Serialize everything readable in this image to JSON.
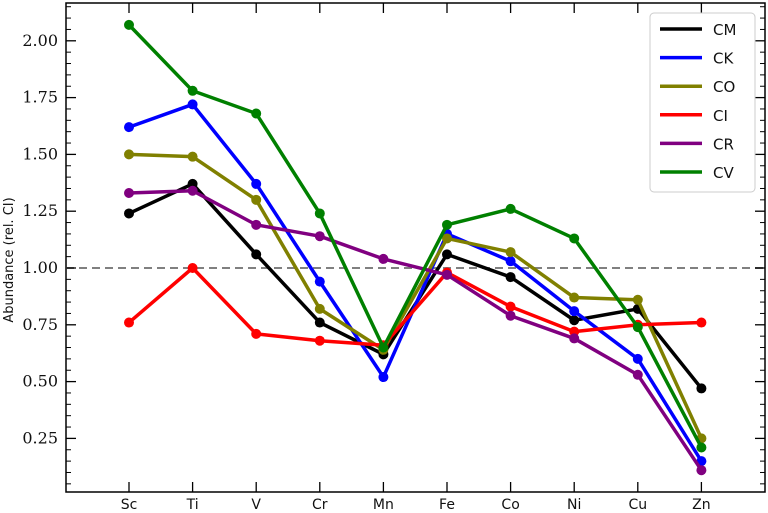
{
  "chart_data": {
    "type": "line",
    "title": "",
    "xlabel": "",
    "ylabel": "Abundance (rel. CI)",
    "categories": [
      "Sc",
      "Ti",
      "V",
      "Cr",
      "Mn",
      "Fe",
      "Co",
      "Ni",
      "Cu",
      "Zn"
    ],
    "yticks": [
      "0.25",
      "0.50",
      "0.75",
      "1.00",
      "1.25",
      "1.50",
      "1.75",
      "2.00"
    ],
    "ylim": [
      0.01,
      2.16
    ],
    "grid": false,
    "reference_line": {
      "y": 1.0,
      "style": "dashed",
      "color": "#808080"
    },
    "legend_position": "upper right",
    "series": [
      {
        "name": "CM",
        "color": "#000000",
        "values": [
          1.24,
          1.37,
          1.06,
          0.76,
          0.62,
          1.06,
          0.96,
          0.77,
          0.82,
          0.47
        ]
      },
      {
        "name": "CK",
        "color": "#0000ff",
        "values": [
          1.62,
          1.72,
          1.37,
          0.94,
          0.52,
          1.15,
          1.03,
          0.81,
          0.6,
          0.15
        ]
      },
      {
        "name": "CO",
        "color": "#808000",
        "values": [
          1.5,
          1.49,
          1.3,
          0.82,
          0.64,
          1.13,
          1.07,
          0.87,
          0.86,
          0.25
        ]
      },
      {
        "name": "CI",
        "color": "#ff0000",
        "values": [
          0.76,
          1.0,
          0.71,
          0.68,
          0.66,
          0.98,
          0.83,
          0.72,
          0.75,
          0.76
        ]
      },
      {
        "name": "CR",
        "color": "#800080",
        "values": [
          1.33,
          1.34,
          1.19,
          1.14,
          1.04,
          0.97,
          0.79,
          0.69,
          0.53,
          0.11
        ]
      },
      {
        "name": "CV",
        "color": "#008000",
        "values": [
          2.07,
          1.78,
          1.68,
          1.24,
          0.65,
          1.19,
          1.26,
          1.13,
          0.74,
          0.21
        ]
      }
    ]
  }
}
